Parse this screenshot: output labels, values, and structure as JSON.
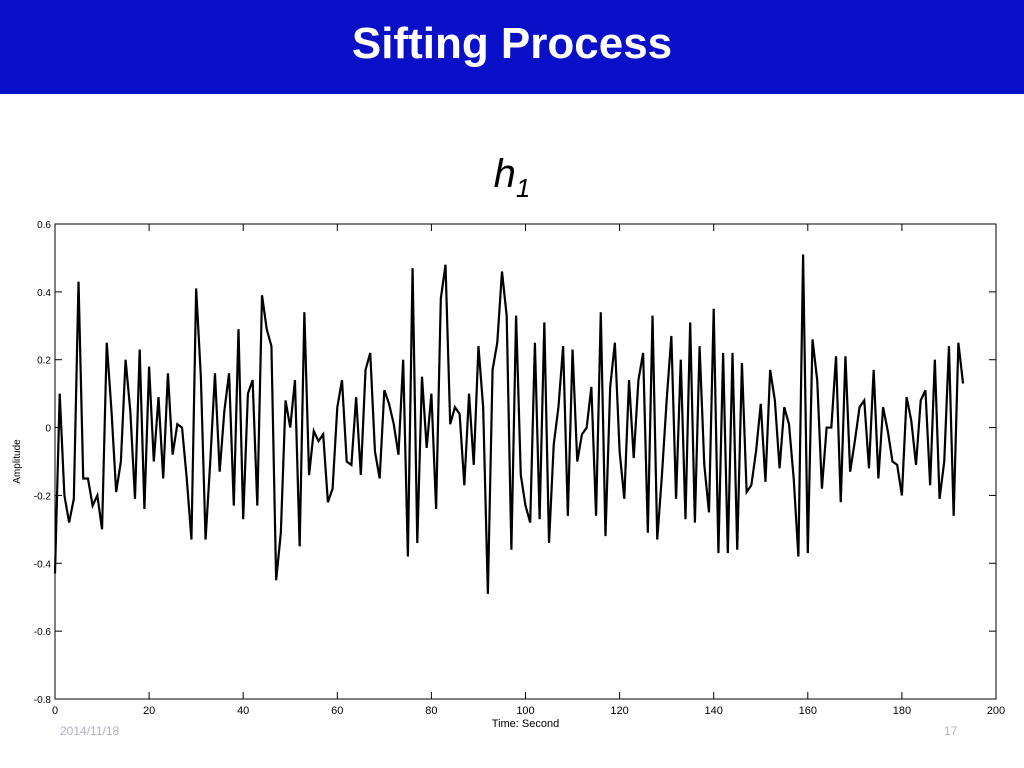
{
  "slide": {
    "title": "Sifting Process",
    "subtitle_main": "h",
    "subtitle_sub": "1",
    "footer_date": "2014/11/18",
    "footer_page": "17"
  },
  "colors": {
    "title_bar": "#0a10c8",
    "line": "#000000"
  },
  "chart_data": {
    "type": "line",
    "title": "",
    "xlabel": "Time: Second",
    "ylabel": "Amplitude",
    "xlim": [
      0,
      200
    ],
    "ylim": [
      -0.8,
      0.6
    ],
    "xticks": [
      0,
      20,
      40,
      60,
      80,
      100,
      120,
      140,
      160,
      180,
      200
    ],
    "yticks": [
      -0.8,
      -0.6,
      -0.4,
      -0.2,
      0,
      0.2,
      0.4,
      0.6
    ],
    "xtick_labels": [
      "0",
      "20",
      "40",
      "60",
      "80",
      "100",
      "120",
      "140",
      "160",
      "180",
      "200"
    ],
    "ytick_labels": [
      "-0.8",
      "-0.6",
      "-0.4",
      "-0.2",
      "0",
      "0.2",
      "0.4",
      "0.6"
    ],
    "grid": false,
    "series": [
      {
        "values": [
          -0.43,
          0.1,
          -0.2,
          -0.28,
          -0.21,
          0.43,
          -0.15,
          -0.15,
          -0.23,
          -0.2,
          -0.3,
          0.25,
          0.05,
          -0.19,
          -0.1,
          0.2,
          0.05,
          -0.21,
          0.23,
          -0.24,
          0.18,
          -0.1,
          0.09,
          -0.15,
          0.16,
          -0.08,
          0.01,
          0.0,
          -0.15,
          -0.33,
          0.41,
          0.15,
          -0.33,
          -0.1,
          0.16,
          -0.13,
          0.05,
          0.16,
          -0.23,
          0.29,
          -0.27,
          0.1,
          0.14,
          -0.23,
          0.39,
          0.29,
          0.24,
          -0.45,
          -0.31,
          0.08,
          0.0,
          0.14,
          -0.35,
          0.34,
          -0.14,
          -0.01,
          -0.04,
          -0.02,
          -0.22,
          -0.18,
          0.06,
          0.14,
          -0.1,
          -0.11,
          0.09,
          -0.14,
          0.17,
          0.22,
          -0.07,
          -0.15,
          0.11,
          0.07,
          0.01,
          -0.08,
          0.2,
          -0.38,
          0.47,
          -0.34,
          0.15,
          -0.06,
          0.1,
          -0.24,
          0.38,
          0.48,
          0.01,
          0.06,
          0.04,
          -0.17,
          0.1,
          -0.11,
          0.24,
          0.06,
          -0.49,
          0.17,
          0.25,
          0.46,
          0.33,
          -0.36,
          0.33,
          -0.14,
          -0.23,
          -0.28,
          0.25,
          -0.27,
          0.31,
          -0.34,
          -0.05,
          0.06,
          0.24,
          -0.26,
          0.23,
          -0.1,
          -0.02,
          0.0,
          0.12,
          -0.26,
          0.34,
          -0.32,
          0.12,
          0.25,
          -0.07,
          -0.21,
          0.14,
          -0.09,
          0.14,
          0.22,
          -0.31,
          0.33,
          -0.33,
          -0.14,
          0.08,
          0.27,
          -0.21,
          0.2,
          -0.27,
          0.31,
          -0.28,
          0.24,
          -0.11,
          -0.25,
          0.35,
          -0.37,
          0.22,
          -0.37,
          0.22,
          -0.36,
          0.19,
          -0.19,
          -0.17,
          -0.07,
          0.07,
          -0.16,
          0.17,
          0.08,
          -0.12,
          0.06,
          0.01,
          -0.15,
          -0.38,
          0.51,
          -0.37,
          0.26,
          0.14,
          -0.18,
          0.0,
          0.0,
          0.21,
          -0.22,
          0.21,
          -0.13,
          -0.04,
          0.06,
          0.08,
          -0.12,
          0.17,
          -0.15,
          0.06,
          -0.01,
          -0.1,
          -0.11,
          -0.2,
          0.09,
          0.02,
          -0.11,
          0.08,
          0.11,
          -0.17,
          0.2,
          -0.21,
          -0.1,
          0.24,
          -0.26,
          0.25,
          0.13
        ]
      }
    ]
  }
}
